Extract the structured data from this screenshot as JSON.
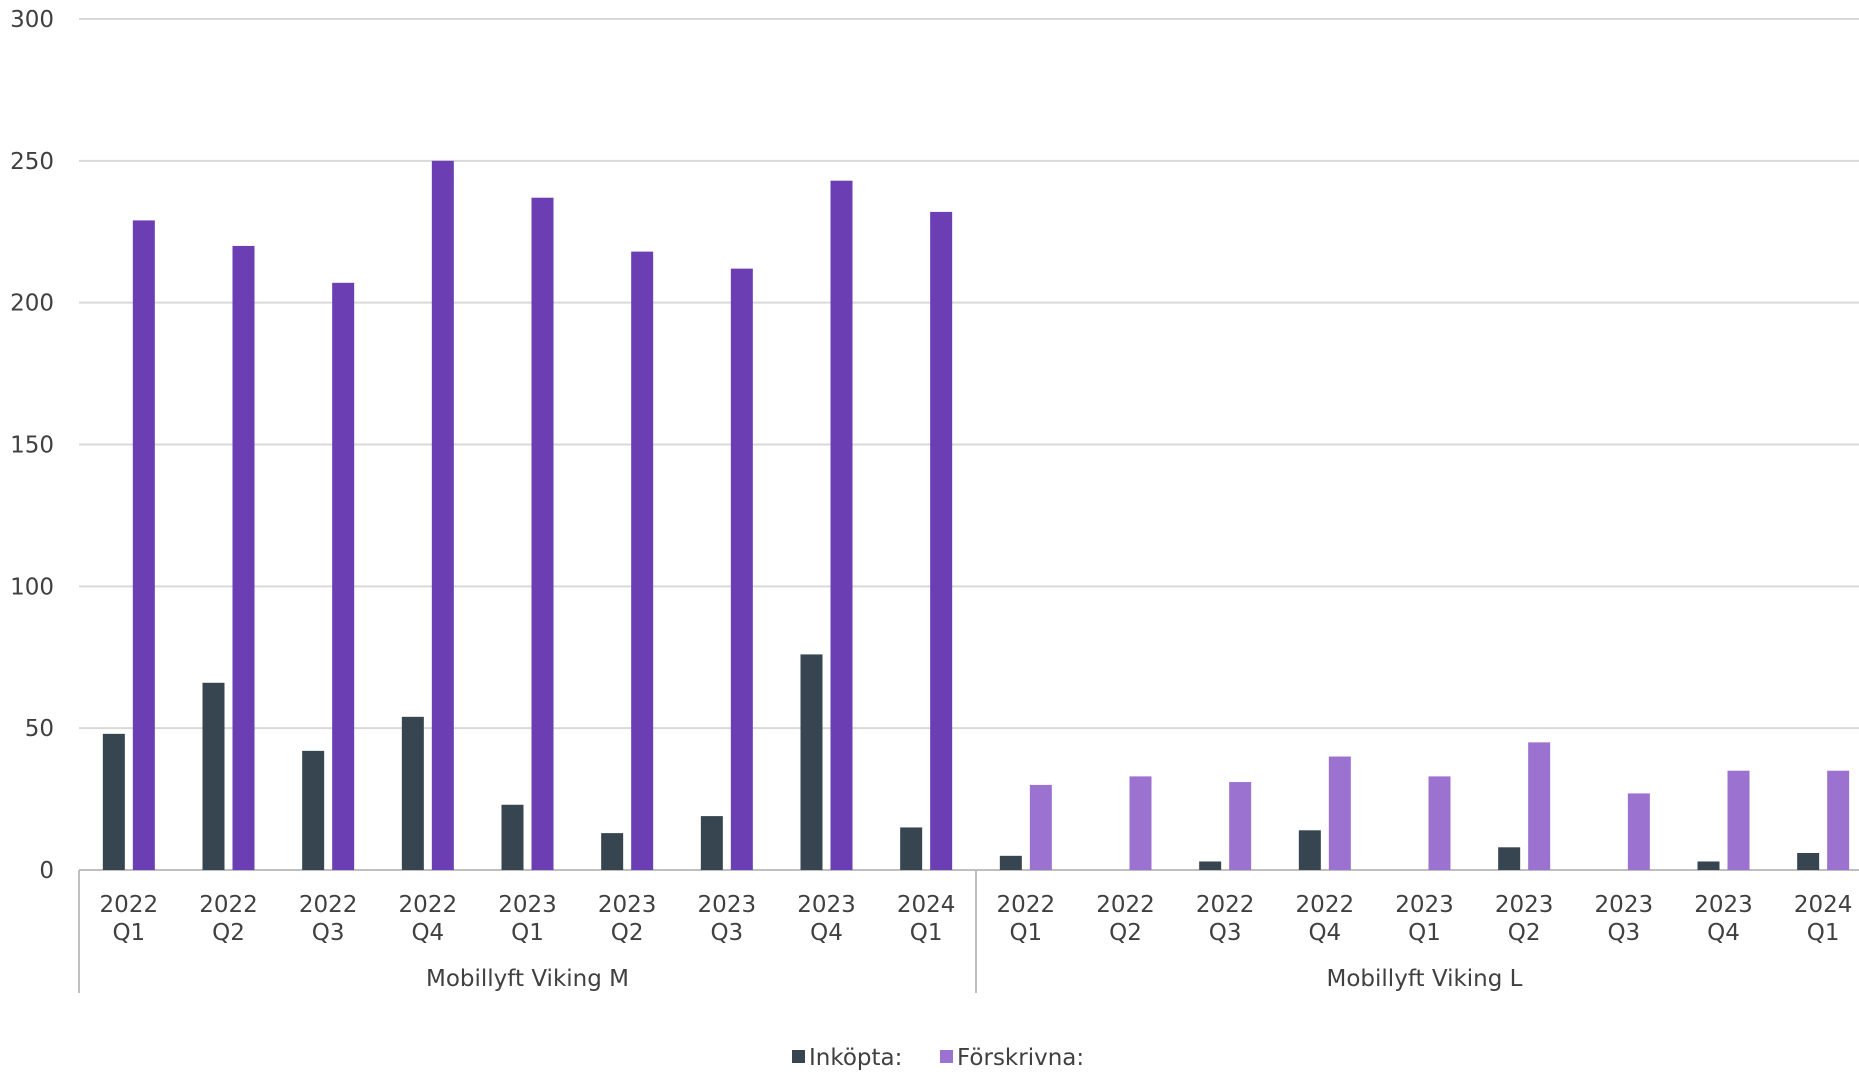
{
  "chart_data": {
    "type": "bar",
    "title": "",
    "xlabel": "",
    "ylabel": "",
    "ylim": [
      0,
      300
    ],
    "yticks": [
      0,
      50,
      100,
      150,
      200,
      250,
      300
    ],
    "grid": true,
    "legend_position": "bottom-center",
    "groups": [
      {
        "name": "Mobillyft Viking M",
        "categories": [
          [
            "2022",
            "Q1"
          ],
          [
            "2022",
            "Q2"
          ],
          [
            "2022",
            "Q3"
          ],
          [
            "2022",
            "Q4"
          ],
          [
            "2023",
            "Q1"
          ],
          [
            "2023",
            "Q2"
          ],
          [
            "2023",
            "Q3"
          ],
          [
            "2023",
            "Q4"
          ],
          [
            "2024",
            "Q1"
          ]
        ],
        "series": [
          {
            "name": "Inköpta:",
            "values": [
              48,
              66,
              42,
              54,
              23,
              13,
              19,
              76,
              15
            ]
          },
          {
            "name": "Förskrivna:",
            "values": [
              229,
              220,
              207,
              250,
              237,
              218,
              212,
              243,
              232
            ]
          }
        ]
      },
      {
        "name": "Mobillyft Viking L",
        "categories": [
          [
            "2022",
            "Q1"
          ],
          [
            "2022",
            "Q2"
          ],
          [
            "2022",
            "Q3"
          ],
          [
            "2022",
            "Q4"
          ],
          [
            "2023",
            "Q1"
          ],
          [
            "2023",
            "Q2"
          ],
          [
            "2023",
            "Q3"
          ],
          [
            "2023",
            "Q4"
          ],
          [
            "2024",
            "Q1"
          ]
        ],
        "series": [
          {
            "name": "Inköpta:",
            "values": [
              5,
              0,
              3,
              14,
              0,
              8,
              0,
              3,
              6
            ]
          },
          {
            "name": "Förskrivna:",
            "values": [
              30,
              33,
              31,
              40,
              33,
              45,
              27,
              35,
              35
            ]
          }
        ]
      }
    ],
    "colors": {
      "inkopta": "#36454f",
      "forskrivna_m": "#6b3fb3",
      "forskrivna_l": "#9b72d0",
      "grid": "#d9d9d9",
      "axis": "#bfbfbf",
      "text": "#404040"
    },
    "legend": [
      {
        "label": "Inköpta:",
        "color": "#36454f"
      },
      {
        "label": "Förskrivna:",
        "color": "#9b72d0"
      }
    ]
  }
}
